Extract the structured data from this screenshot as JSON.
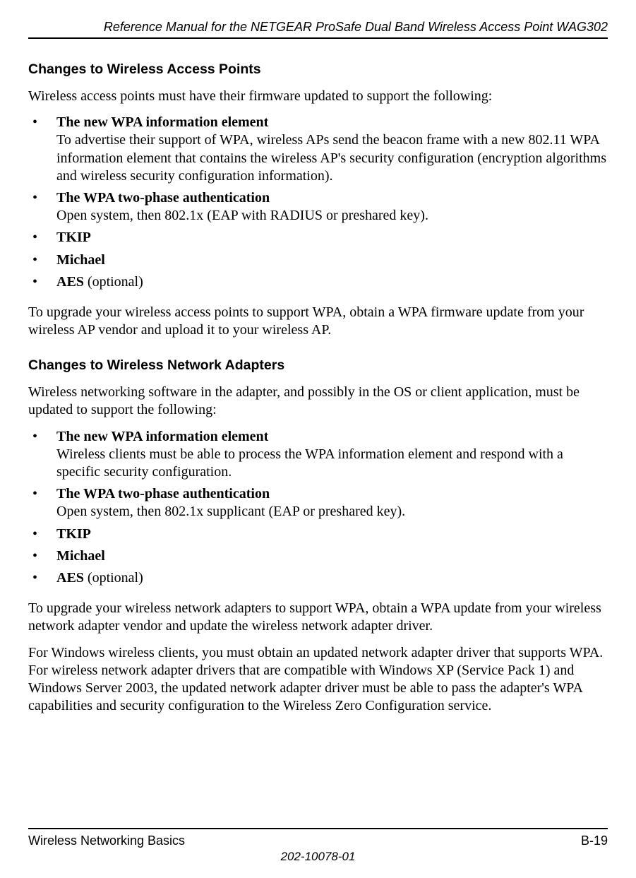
{
  "header": {
    "running_title": "Reference Manual for the NETGEAR ProSafe Dual Band Wireless Access Point WAG302"
  },
  "section1": {
    "heading": "Changes to Wireless Access Points",
    "intro": "Wireless access points must have their firmware updated to support the following:",
    "items": [
      {
        "title": "The new WPA information element",
        "body": "To advertise their support of WPA, wireless APs send the beacon frame with a new 802.11 WPA information element that contains the wireless AP's security configuration (encryption algorithms and wireless security configuration information)."
      },
      {
        "title": "The WPA two-phase authentication",
        "body": "Open system, then 802.1x (EAP with RADIUS or preshared key)."
      },
      {
        "title": "TKIP",
        "body": ""
      },
      {
        "title": "Michael",
        "body": ""
      },
      {
        "title_bold": "AES",
        "title_rest": " (optional)",
        "body": ""
      }
    ],
    "outro": "To upgrade your wireless access points to support WPA, obtain a WPA firmware update from your wireless AP vendor and upload it to your wireless AP."
  },
  "section2": {
    "heading": "Changes to Wireless Network Adapters",
    "intro": "Wireless networking software in the adapter, and possibly in the OS or client application, must be updated to support the following:",
    "items": [
      {
        "title": "The new WPA information element",
        "body": "Wireless clients must be able to process the WPA information element and respond with a specific security configuration."
      },
      {
        "title": "The WPA two-phase authentication",
        "body": "Open system, then 802.1x supplicant (EAP or preshared key)."
      },
      {
        "title": "TKIP",
        "body": ""
      },
      {
        "title": "Michael",
        "body": ""
      },
      {
        "title_bold": "AES",
        "title_rest": " (optional)",
        "body": ""
      }
    ],
    "outro1": "To upgrade your wireless network adapters to support WPA, obtain a WPA update from your wireless network adapter vendor and update the wireless network adapter driver.",
    "outro2": "For Windows wireless clients, you must obtain an updated network adapter driver that supports WPA. For wireless network adapter drivers that are compatible with Windows XP (Service Pack 1) and Windows Server 2003, the updated network adapter driver must be able to pass the adapter's WPA capabilities and security configuration to the Wireless Zero Configuration service."
  },
  "footer": {
    "left": "Wireless Networking Basics",
    "right": "B-19",
    "docnum": "202-10078-01"
  }
}
